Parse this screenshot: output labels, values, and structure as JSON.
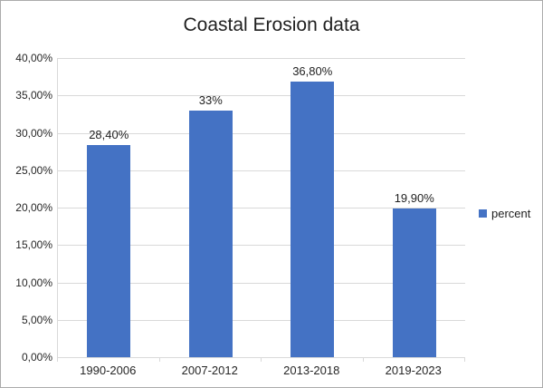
{
  "chart_data": {
    "type": "bar",
    "title": "Coastal Erosion data",
    "categories": [
      "1990-2006",
      "2007-2012",
      "2013-2018",
      "2019-2023"
    ],
    "series": [
      {
        "name": "percent",
        "values": [
          28.4,
          33.0,
          36.8,
          19.9
        ]
      }
    ],
    "data_labels": [
      "28,40%",
      "33%",
      "36,80%",
      "19,90%"
    ],
    "y_tick_labels": [
      "0,00%",
      "5,00%",
      "10,00%",
      "15,00%",
      "20,00%",
      "25,00%",
      "30,00%",
      "35,00%",
      "40,00%"
    ],
    "ylim": [
      0,
      40
    ],
    "y_step": 5,
    "grid": true,
    "legend": {
      "position": "right",
      "label": "percent"
    },
    "colors": {
      "bar": "#4472C4",
      "gridline": "#D9D9D9",
      "axis": "#D9D9D9",
      "text": "#262626",
      "title_text": "#1F1F1F",
      "chart_border": "#ABABAB"
    }
  }
}
